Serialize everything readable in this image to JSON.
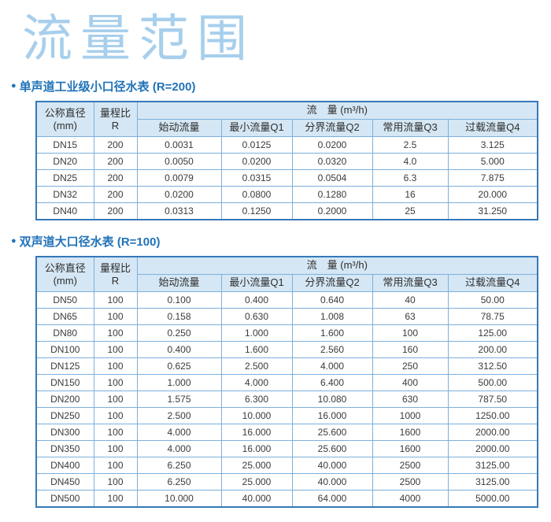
{
  "page": {
    "title": "流量范围",
    "bullet": "●",
    "colors": {
      "title_blue": "#a7cfec",
      "section_blue": "#2173b9",
      "outer_border": "#3579b8",
      "inner_border": "#7cb0dd",
      "header_bg": "#d5e7f4",
      "text_dark": "#3b3b3b"
    }
  },
  "tables": [
    {
      "section_title": "单声道工业级小口径水表 (R=200)",
      "header": {
        "col1": "公称直径",
        "col1_sub": "(mm)",
        "col2": "量程比",
        "col2_sub": "R",
        "span_label": "流　量 (m³/h)",
        "cols": [
          "始动流量",
          "最小流量Q1",
          "分界流量Q2",
          "常用流量Q3",
          "过载流量Q4"
        ]
      },
      "rows": [
        [
          "DN15",
          "200",
          "0.0031",
          "0.0125",
          "0.0200",
          "2.5",
          "3.125"
        ],
        [
          "DN20",
          "200",
          "0.0050",
          "0.0200",
          "0.0320",
          "4.0",
          "5.000"
        ],
        [
          "DN25",
          "200",
          "0.0079",
          "0.0315",
          "0.0504",
          "6.3",
          "7.875"
        ],
        [
          "DN32",
          "200",
          "0.0200",
          "0.0800",
          "0.1280",
          "16",
          "20.000"
        ],
        [
          "DN40",
          "200",
          "0.0313",
          "0.1250",
          "0.2000",
          "25",
          "31.250"
        ]
      ]
    },
    {
      "section_title": "双声道大口径水表 (R=100)",
      "header": {
        "col1": "公称直径",
        "col1_sub": "(mm)",
        "col2": "量程比",
        "col2_sub": "R",
        "span_label": "流　量 (m³/h)",
        "cols": [
          "始动流量",
          "最小流量Q1",
          "分界流量Q2",
          "常用流量Q3",
          "过载流量Q4"
        ]
      },
      "rows": [
        [
          "DN50",
          "100",
          "0.100",
          "0.400",
          "0.640",
          "40",
          "50.00"
        ],
        [
          "DN65",
          "100",
          "0.158",
          "0.630",
          "1.008",
          "63",
          "78.75"
        ],
        [
          "DN80",
          "100",
          "0.250",
          "1.000",
          "1.600",
          "100",
          "125.00"
        ],
        [
          "DN100",
          "100",
          "0.400",
          "1.600",
          "2.560",
          "160",
          "200.00"
        ],
        [
          "DN125",
          "100",
          "0.625",
          "2.500",
          "4.000",
          "250",
          "312.50"
        ],
        [
          "DN150",
          "100",
          "1.000",
          "4.000",
          "6.400",
          "400",
          "500.00"
        ],
        [
          "DN200",
          "100",
          "1.575",
          "6.300",
          "10.080",
          "630",
          "787.50"
        ],
        [
          "DN250",
          "100",
          "2.500",
          "10.000",
          "16.000",
          "1000",
          "1250.00"
        ],
        [
          "DN300",
          "100",
          "4.000",
          "16.000",
          "25.600",
          "1600",
          "2000.00"
        ],
        [
          "DN350",
          "100",
          "4.000",
          "16.000",
          "25.600",
          "1600",
          "2000.00"
        ],
        [
          "DN400",
          "100",
          "6.250",
          "25.000",
          "40.000",
          "2500",
          "3125.00"
        ],
        [
          "DN450",
          "100",
          "6.250",
          "25.000",
          "40.000",
          "2500",
          "3125.00"
        ],
        [
          "DN500",
          "100",
          "10.000",
          "40.000",
          "64.000",
          "4000",
          "5000.00"
        ]
      ]
    }
  ]
}
